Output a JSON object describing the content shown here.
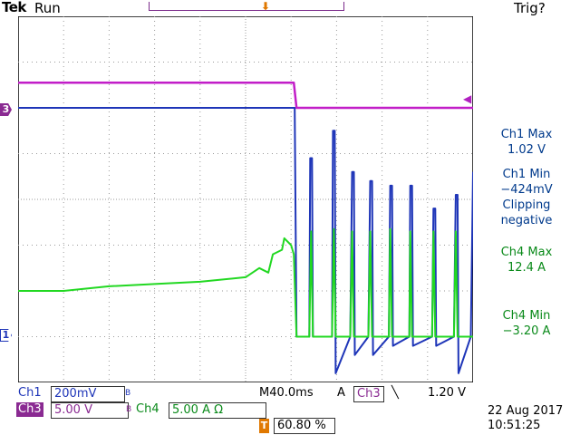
{
  "header": {
    "brand": "Tek",
    "status": "Run",
    "trigger_status": "Trig?"
  },
  "colors": {
    "ch1": "#1e35b8",
    "ch3": "#c21ec8",
    "ch4": "#22d822",
    "trigger": "#e07800",
    "grid": "#9a9a9a"
  },
  "markers": {
    "ch3_label": "3",
    "ch1_label": "1",
    "trigger_label": "T"
  },
  "measurements": [
    {
      "lines": [
        "Ch1 Max",
        "1.02 V"
      ],
      "color": "blue"
    },
    {
      "lines": [
        "Ch1 Min",
        "−424mV",
        "Clipping",
        "negative"
      ],
      "color": "blue"
    },
    {
      "lines": [
        "Ch4 Max",
        "12.4 A"
      ],
      "color": "green"
    },
    {
      "lines": [
        "Ch4 Min",
        "−3.20 A"
      ],
      "color": "green"
    }
  ],
  "readouts": {
    "ch1_name": "Ch1",
    "ch1_scale": "200mV",
    "ch1_bw": "B",
    "ch3_name": "Ch3",
    "ch3_scale": "5.00 V",
    "ch3_bw": "B",
    "ch4_name": "Ch4",
    "ch4_scale": "5.00 A Ω",
    "timebase": "M40.0ms",
    "trigger_mode": "A",
    "trigger_source": "Ch3",
    "trigger_slope": "╲",
    "trigger_level": "1.20 V",
    "trigger_position_icon": "T",
    "trigger_position": "60.80 %"
  },
  "datetime": {
    "date": "22 Aug 2017",
    "time": "10:51:25"
  },
  "chart_data": {
    "type": "line",
    "x_unit": "div",
    "y_unit": "div",
    "xlim": [
      0,
      10
    ],
    "ylim": [
      0,
      8
    ],
    "grid": true,
    "series": [
      {
        "color": "#c21ec8",
        "points": [
          [
            0,
            6.55
          ],
          [
            6.06,
            6.55
          ],
          [
            6.12,
            6.0
          ],
          [
            10,
            6.0
          ]
        ]
      },
      {
        "color": "#1e35b8",
        "points": [
          [
            0,
            6.0
          ],
          [
            6.08,
            6.0
          ],
          [
            6.12,
            1.0
          ],
          [
            6.4,
            1.0
          ],
          [
            6.42,
            4.9
          ],
          [
            6.46,
            4.9
          ],
          [
            6.48,
            1.0
          ],
          [
            6.9,
            1.0
          ],
          [
            6.92,
            5.5
          ],
          [
            6.96,
            5.5
          ],
          [
            6.98,
            0.2
          ],
          [
            7.3,
            1.0
          ],
          [
            7.34,
            4.6
          ],
          [
            7.38,
            4.6
          ],
          [
            7.4,
            0.6
          ],
          [
            7.7,
            1.0
          ],
          [
            7.74,
            4.4
          ],
          [
            7.78,
            4.4
          ],
          [
            7.8,
            0.6
          ],
          [
            8.15,
            1.0
          ],
          [
            8.18,
            4.3
          ],
          [
            8.22,
            4.3
          ],
          [
            8.24,
            0.8
          ],
          [
            8.6,
            1.0
          ],
          [
            8.62,
            4.3
          ],
          [
            8.66,
            4.3
          ],
          [
            8.68,
            0.8
          ],
          [
            9.1,
            1.0
          ],
          [
            9.13,
            3.8
          ],
          [
            9.17,
            3.8
          ],
          [
            9.19,
            0.8
          ],
          [
            9.58,
            1.0
          ],
          [
            9.62,
            4.1
          ],
          [
            9.66,
            4.1
          ],
          [
            9.68,
            0.2
          ],
          [
            9.95,
            1.0
          ],
          [
            10,
            4.6
          ]
        ]
      },
      {
        "color": "#22d822",
        "points": [
          [
            0,
            2.0
          ],
          [
            1.0,
            2.0
          ],
          [
            2.0,
            2.1
          ],
          [
            3.0,
            2.15
          ],
          [
            4.0,
            2.2
          ],
          [
            5.0,
            2.3
          ],
          [
            5.3,
            2.5
          ],
          [
            5.5,
            2.4
          ],
          [
            5.6,
            2.8
          ],
          [
            5.8,
            2.9
          ],
          [
            5.85,
            3.15
          ],
          [
            6.0,
            3.0
          ],
          [
            6.06,
            2.8
          ],
          [
            6.12,
            1.0
          ],
          [
            6.4,
            1.0
          ],
          [
            6.44,
            3.3
          ],
          [
            6.48,
            1.0
          ],
          [
            6.9,
            1.0
          ],
          [
            6.94,
            3.35
          ],
          [
            6.98,
            1.0
          ],
          [
            7.3,
            1.0
          ],
          [
            7.34,
            3.3
          ],
          [
            7.38,
            1.0
          ],
          [
            7.7,
            1.0
          ],
          [
            7.74,
            3.3
          ],
          [
            7.78,
            1.0
          ],
          [
            8.15,
            1.0
          ],
          [
            8.18,
            3.35
          ],
          [
            8.22,
            1.0
          ],
          [
            8.6,
            1.0
          ],
          [
            8.62,
            3.3
          ],
          [
            8.66,
            1.0
          ],
          [
            9.1,
            1.0
          ],
          [
            9.13,
            3.3
          ],
          [
            9.17,
            1.0
          ],
          [
            9.58,
            1.0
          ],
          [
            9.62,
            3.3
          ],
          [
            9.66,
            1.0
          ],
          [
            10,
            1.0
          ]
        ]
      }
    ]
  }
}
